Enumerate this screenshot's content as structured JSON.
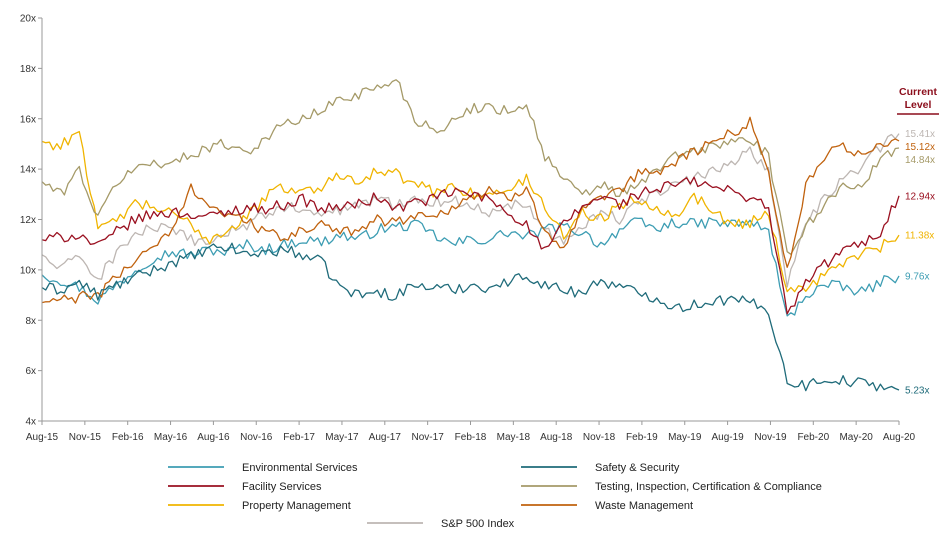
{
  "chart_data": {
    "type": "line",
    "title": "",
    "xlabel": "",
    "ylabel": "",
    "ylim": [
      4,
      20
    ],
    "y_ticks": [
      "4x",
      "6x",
      "8x",
      "10x",
      "12x",
      "14x",
      "16x",
      "18x",
      "20x"
    ],
    "x_ticks": [
      "Aug-15",
      "Nov-15",
      "Feb-16",
      "May-16",
      "Aug-16",
      "Nov-16",
      "Feb-17",
      "May-17",
      "Aug-17",
      "Nov-17",
      "Feb-18",
      "May-18",
      "Aug-18",
      "Nov-18",
      "Feb-19",
      "May-19",
      "Aug-19",
      "Nov-19",
      "Feb-20",
      "May-20",
      "Aug-20"
    ],
    "current_level_label": [
      "Current",
      "Level"
    ],
    "current_level_color": "#8b0d1b",
    "axis_color": "#999999",
    "series": [
      {
        "name": "Environmental Services",
        "color": "#3d9db3",
        "end_label": "9.76x",
        "values": [
          9.8,
          9.6,
          9.3,
          8.8,
          9.4,
          10.0,
          10.5,
          10.7,
          10.6,
          10.8,
          10.7,
          11.0,
          10.8,
          11.0,
          11.2,
          11.1,
          11.4,
          11.2,
          11.6,
          11.7,
          11.8,
          11.4,
          11.0,
          11.2,
          11.2,
          11.5,
          11.3,
          11.6,
          11.7,
          11.5,
          11.0,
          11.6,
          11.9,
          11.6,
          11.9,
          11.8,
          11.9,
          11.8,
          11.9,
          11.5,
          8.0,
          9.0,
          9.4,
          9.3,
          9.1,
          9.5,
          9.76
        ]
      },
      {
        "name": "Safety & Security",
        "color": "#1f6b7a",
        "end_label": "5.23x",
        "values": [
          9.3,
          9.2,
          9.5,
          9.0,
          9.4,
          9.7,
          10.0,
          10.3,
          10.5,
          10.8,
          10.9,
          10.6,
          10.7,
          10.8,
          10.6,
          10.3,
          9.3,
          9.0,
          9.1,
          9.0,
          9.4,
          9.3,
          9.2,
          9.4,
          9.3,
          9.5,
          9.8,
          9.4,
          9.2,
          9.1,
          9.6,
          9.3,
          9.1,
          8.9,
          8.5,
          8.6,
          8.8,
          8.8,
          8.7,
          8.4,
          5.6,
          5.4,
          5.7,
          5.6,
          5.5,
          5.4,
          5.23
        ]
      },
      {
        "name": "Facility Services",
        "color": "#9a1020",
        "end_label": "12.94x",
        "values": [
          11.2,
          11.3,
          11.4,
          10.9,
          11.5,
          12.0,
          12.2,
          12.3,
          12.2,
          12.1,
          12.3,
          12.5,
          12.4,
          12.6,
          12.8,
          12.4,
          12.5,
          12.6,
          12.9,
          12.4,
          12.7,
          12.8,
          13.1,
          13.0,
          12.8,
          12.3,
          11.8,
          10.7,
          11.8,
          12.5,
          12.9,
          12.6,
          13.0,
          13.2,
          13.4,
          13.5,
          13.3,
          13.1,
          12.9,
          12.5,
          8.2,
          9.5,
          10.2,
          10.8,
          11.0,
          11.5,
          12.94
        ]
      },
      {
        "name": "Testing, Inspection, Certification & Compliance",
        "color": "#a59a68",
        "end_label": "14.84x",
        "values": [
          13.5,
          13.0,
          14.0,
          12.0,
          13.5,
          14.0,
          14.3,
          14.2,
          14.6,
          14.9,
          15.0,
          14.7,
          15.2,
          15.8,
          16.0,
          16.3,
          16.8,
          17.0,
          17.2,
          17.6,
          16.0,
          15.6,
          15.8,
          16.4,
          16.5,
          16.3,
          16.6,
          14.5,
          13.6,
          12.9,
          13.4,
          13.0,
          13.3,
          14.0,
          14.5,
          14.7,
          14.9,
          15.1,
          15.2,
          14.5,
          10.5,
          11.8,
          12.5,
          13.5,
          13.2,
          14.4,
          14.84
        ]
      },
      {
        "name": "Property Management",
        "color": "#f0b400",
        "end_label": "11.38x",
        "values": [
          15.1,
          14.9,
          15.6,
          11.5,
          12.0,
          12.6,
          12.5,
          12.2,
          11.8,
          11.2,
          11.6,
          12.1,
          12.9,
          13.3,
          13.1,
          13.3,
          13.8,
          13.6,
          13.9,
          13.8,
          13.4,
          13.1,
          13.3,
          13.1,
          12.9,
          13.2,
          13.6,
          12.5,
          11.4,
          12.3,
          12.0,
          12.6,
          12.8,
          12.5,
          12.2,
          12.9,
          12.4,
          11.8,
          11.9,
          12.3,
          9.2,
          9.3,
          9.8,
          10.3,
          10.6,
          10.9,
          11.38
        ]
      },
      {
        "name": "Waste Management",
        "color": "#c0620e",
        "end_label": "15.12x",
        "values": [
          8.7,
          8.8,
          8.9,
          9.0,
          9.7,
          10.4,
          11.0,
          11.5,
          13.3,
          12.6,
          12.1,
          12.0,
          11.5,
          11.2,
          11.6,
          11.8,
          11.4,
          11.7,
          12.0,
          11.9,
          12.2,
          12.1,
          12.5,
          12.9,
          13.1,
          12.8,
          13.3,
          11.6,
          10.8,
          12.3,
          12.8,
          13.1,
          13.8,
          13.9,
          14.3,
          14.7,
          15.1,
          15.4,
          15.9,
          13.9,
          10.0,
          13.3,
          14.5,
          14.9,
          14.6,
          15.0,
          15.12
        ]
      },
      {
        "name": "S&P 500 Index",
        "color": "#bdb6b2",
        "end_label": "15.41x",
        "values": [
          10.6,
          10.0,
          10.6,
          9.6,
          10.7,
          11.4,
          11.7,
          11.5,
          11.2,
          11.1,
          11.5,
          11.8,
          12.2,
          12.5,
          12.4,
          12.1,
          12.4,
          12.6,
          12.8,
          12.6,
          12.9,
          12.7,
          12.8,
          12.5,
          12.3,
          12.6,
          12.7,
          11.6,
          11.1,
          11.8,
          12.3,
          12.0,
          12.6,
          13.1,
          13.4,
          13.6,
          13.9,
          14.3,
          14.8,
          13.9,
          9.5,
          11.8,
          12.8,
          13.6,
          14.1,
          14.9,
          15.41
        ]
      }
    ],
    "legend_order": [
      0,
      1,
      2,
      3,
      4,
      5,
      6
    ]
  }
}
